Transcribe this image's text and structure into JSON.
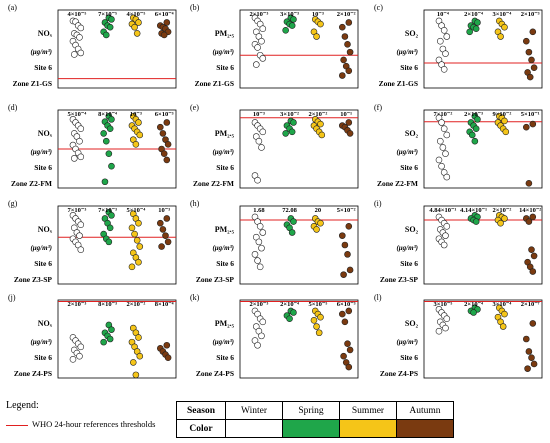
{
  "figure": {
    "legend_title": "Legend:",
    "threshold_label": "WHO 24-hour references thresholds",
    "season_table": {
      "season_header": "Season",
      "color_header": "Color",
      "seasons": [
        "Winter",
        "Spring",
        "Summer",
        "Autumn"
      ],
      "colors": [
        "#ffffff",
        "#1fa64a",
        "#f5c518",
        "#7a3a10"
      ]
    },
    "threshold_color": "#e02020"
  },
  "chart_data": [
    {
      "type": "scatter",
      "panel": "(a)",
      "pollutant": "NOₓ",
      "unit": "(μg/m³)",
      "site": "Site 6",
      "zone": "Zone Z1-GS",
      "p_values": [
        "4×10⁻⁵",
        "7×10⁻⁵",
        "4×10⁻⁵",
        "6×10⁻⁴"
      ],
      "threshold": 0.12,
      "series": [
        {
          "name": "Winter",
          "values": [
            0.86,
            0.85,
            0.8,
            0.77,
            0.7,
            0.68,
            0.65,
            0.6,
            0.55,
            0.5,
            0.45,
            0.43
          ]
        },
        {
          "name": "Spring",
          "values": [
            0.9,
            0.88,
            0.84,
            0.8,
            0.78,
            0.72,
            0.68
          ]
        },
        {
          "name": "Summer",
          "values": [
            0.9,
            0.88,
            0.84,
            0.82,
            0.78,
            0.7
          ]
        },
        {
          "name": "Autumn",
          "values": [
            0.84,
            0.8,
            0.78,
            0.76,
            0.72,
            0.7,
            0.68
          ]
        }
      ]
    },
    {
      "type": "scatter",
      "panel": "(b)",
      "pollutant": "PM₂.₅",
      "unit": "(μg/m³)",
      "site": "Site 6",
      "zone": "Zone Z1-GS",
      "p_values": [
        "2×10⁻³",
        "3×10⁻³",
        "10⁻³",
        "2×10⁻²"
      ],
      "threshold": 0.42,
      "series": [
        {
          "name": "Winter",
          "values": [
            0.9,
            0.86,
            0.82,
            0.76,
            0.72,
            0.66,
            0.6,
            0.56,
            0.52,
            0.42,
            0.38,
            0.3
          ]
        },
        {
          "name": "Spring",
          "values": [
            0.9,
            0.88,
            0.85,
            0.82,
            0.8,
            0.74
          ]
        },
        {
          "name": "Summer",
          "values": [
            0.88,
            0.85,
            0.82,
            0.72,
            0.66
          ]
        },
        {
          "name": "Autumn",
          "values": [
            0.84,
            0.78,
            0.66,
            0.56,
            0.46,
            0.36,
            0.28,
            0.22,
            0.16
          ]
        }
      ]
    },
    {
      "type": "scatter",
      "panel": "(c)",
      "pollutant": "SO₂",
      "unit": "(μg/m³)",
      "site": "Site 6",
      "zone": "Zone Z1-GS",
      "p_values": [
        "10⁻⁴",
        "2×10⁻⁴",
        "3×10⁻⁴",
        "2×10⁻³"
      ],
      "threshold": 0.32,
      "series": [
        {
          "name": "Winter",
          "values": [
            0.86,
            0.8,
            0.74,
            0.66,
            0.6,
            0.5,
            0.44,
            0.36,
            0.3,
            0.24
          ]
        },
        {
          "name": "Spring",
          "values": [
            0.86,
            0.84,
            0.8,
            0.78,
            0.76,
            0.72
          ]
        },
        {
          "name": "Summer",
          "values": [
            0.86,
            0.82,
            0.78,
            0.72,
            0.66
          ]
        },
        {
          "name": "Autumn",
          "values": [
            0.72,
            0.6,
            0.46,
            0.36,
            0.26,
            0.2,
            0.14
          ]
        }
      ]
    },
    {
      "type": "scatter",
      "panel": "(d)",
      "pollutant": "NOₓ",
      "unit": "(μg/m³)",
      "site": "Site 6",
      "zone": "Zone Z2-FM",
      "p_values": [
        "5×10⁻⁴",
        "8×10⁻⁴",
        "10⁻³",
        "6×10⁻³"
      ],
      "threshold": 0.5,
      "series": [
        {
          "name": "Winter",
          "values": [
            0.88,
            0.84,
            0.8,
            0.76,
            0.7,
            0.66,
            0.6,
            0.55,
            0.5,
            0.45,
            0.4,
            0.38
          ]
        },
        {
          "name": "Spring",
          "values": [
            0.92,
            0.88,
            0.85,
            0.8,
            0.76,
            0.7,
            0.6,
            0.44,
            0.28,
            0.08
          ]
        },
        {
          "name": "Summer",
          "values": [
            0.92,
            0.88,
            0.84,
            0.8,
            0.76,
            0.72,
            0.68,
            0.62,
            0.56
          ]
        },
        {
          "name": "Autumn",
          "values": [
            0.84,
            0.78,
            0.7,
            0.62,
            0.56,
            0.5,
            0.44,
            0.36
          ]
        }
      ]
    },
    {
      "type": "scatter",
      "panel": "(e)",
      "pollutant": "PM₂.₅",
      "unit": "(μg/m³)",
      "site": "Site 6",
      "zone": "Zone Z2-FM",
      "p_values": [
        "10⁻³",
        "3×10⁻²",
        "2×10⁻²",
        "10⁻¹"
      ],
      "threshold": 0.9,
      "series": [
        {
          "name": "Winter",
          "values": [
            0.84,
            0.8,
            0.76,
            0.72,
            0.66,
            0.6,
            0.52,
            0.16,
            0.1
          ]
        },
        {
          "name": "Spring",
          "values": [
            0.86,
            0.84,
            0.8,
            0.76,
            0.72,
            0.7
          ]
        },
        {
          "name": "Summer",
          "values": [
            0.88,
            0.85,
            0.82,
            0.8,
            0.76,
            0.72,
            0.68
          ]
        },
        {
          "name": "Autumn",
          "values": [
            0.84,
            0.8,
            0.78,
            0.74,
            0.7
          ]
        }
      ]
    },
    {
      "type": "scatter",
      "panel": "(f)",
      "pollutant": "SO₂",
      "unit": "(μg/m³)",
      "site": "Site 6",
      "zone": "Zone Z2-FM",
      "p_values": [
        "7×10⁻²",
        "2×10⁻³",
        "9×10⁻²",
        "5×10⁻¹"
      ],
      "threshold": 0.85,
      "series": [
        {
          "name": "Winter",
          "values": [
            0.9,
            0.84,
            0.76,
            0.68,
            0.6,
            0.52,
            0.44,
            0.36,
            0.28,
            0.2,
            0.14
          ]
        },
        {
          "name": "Spring",
          "values": [
            0.92,
            0.88,
            0.84,
            0.8,
            0.76,
            0.72,
            0.68,
            0.6
          ]
        },
        {
          "name": "Summer",
          "values": [
            0.92,
            0.9,
            0.86,
            0.84,
            0.8,
            0.76,
            0.72
          ]
        },
        {
          "name": "Autumn",
          "values": [
            0.82,
            0.78,
            0.06
          ]
        }
      ]
    },
    {
      "type": "scatter",
      "panel": "(g)",
      "pollutant": "NOₓ",
      "unit": "(μg/m³)",
      "site": "Site 6",
      "zone": "Zone Z3-SP",
      "p_values": [
        "7×10⁻³",
        "7×10⁻³",
        "5×10⁻⁴",
        "10⁻³"
      ],
      "threshold": 0.6,
      "series": [
        {
          "name": "Winter",
          "values": [
            0.88,
            0.84,
            0.8,
            0.76,
            0.72,
            0.66,
            0.62,
            0.58,
            0.54,
            0.5,
            0.44
          ]
        },
        {
          "name": "Spring",
          "values": [
            0.92,
            0.88,
            0.84,
            0.78,
            0.72,
            0.64,
            0.58,
            0.54
          ]
        },
        {
          "name": "Summer",
          "values": [
            0.9,
            0.84,
            0.78,
            0.72,
            0.64,
            0.56,
            0.48,
            0.4,
            0.34,
            0.28,
            0.22
          ]
        },
        {
          "name": "Autumn",
          "values": [
            0.84,
            0.78,
            0.7,
            0.62,
            0.54,
            0.48
          ]
        }
      ]
    },
    {
      "type": "scatter",
      "panel": "(h)",
      "pollutant": "PM₂.₅",
      "unit": "(μg/m³)",
      "site": "Site 6",
      "zone": "Zone Z3-SP",
      "p_values": [
        "1.68",
        "72.08",
        "20",
        "5×10⁻²"
      ],
      "threshold": 0.82,
      "series": [
        {
          "name": "Winter",
          "values": [
            0.86,
            0.8,
            0.74,
            0.66,
            0.6,
            0.54,
            0.46,
            0.38,
            0.3,
            0.22
          ]
        },
        {
          "name": "Spring",
          "values": [
            0.84,
            0.8,
            0.76,
            0.72,
            0.66
          ]
        },
        {
          "name": "Summer",
          "values": [
            0.84,
            0.8,
            0.78,
            0.74,
            0.7
          ]
        },
        {
          "name": "Autumn",
          "values": [
            0.74,
            0.62,
            0.5,
            0.38,
            0.18,
            0.12
          ]
        }
      ]
    },
    {
      "type": "scatter",
      "panel": "(i)",
      "pollutant": "SO₂",
      "unit": "(μg/m³)",
      "site": "Site 6",
      "zone": "Zone Z3-SP",
      "p_values": [
        "4.84×10⁻¹",
        "4.14×10⁻¹",
        "2×10⁻²",
        "14×10⁻²"
      ],
      "threshold": 0.82,
      "series": [
        {
          "name": "Winter",
          "values": [
            0.86,
            0.82,
            0.78,
            0.74,
            0.7,
            0.66,
            0.62,
            0.58,
            0.54,
            0.5
          ]
        },
        {
          "name": "Spring",
          "values": [
            0.88,
            0.86,
            0.84,
            0.82,
            0.8
          ]
        },
        {
          "name": "Summer",
          "values": [
            0.88,
            0.86,
            0.84,
            0.82,
            0.78
          ]
        },
        {
          "name": "Autumn",
          "values": [
            0.86,
            0.84,
            0.8,
            0.44,
            0.36,
            0.28,
            0.22,
            0.16
          ]
        }
      ]
    },
    {
      "type": "scatter",
      "panel": "(j)",
      "pollutant": "NOₓ",
      "unit": "(μg/m³)",
      "site": "Site 6",
      "zone": "Zone Z4-PS",
      "p_values": [
        "2×10⁻³",
        "8×10⁻³",
        "2×10⁻²",
        "8×10⁻⁴"
      ],
      "threshold": 0.98,
      "series": [
        {
          "name": "Winter",
          "values": [
            0.52,
            0.48,
            0.44,
            0.4,
            0.36,
            0.32,
            0.28,
            0.24
          ]
        },
        {
          "name": "Spring",
          "values": [
            0.68,
            0.62,
            0.58,
            0.54,
            0.5,
            0.46
          ]
        },
        {
          "name": "Summer",
          "values": [
            0.64,
            0.58,
            0.52,
            0.46,
            0.4,
            0.34,
            0.28,
            0.2,
            0.04
          ]
        },
        {
          "name": "Autumn",
          "values": [
            0.42,
            0.38,
            0.34,
            0.3,
            0.26
          ]
        }
      ]
    },
    {
      "type": "scatter",
      "panel": "(k)",
      "pollutant": "PM₂.₅",
      "unit": "(μg/m³)",
      "site": "Site 6",
      "zone": "Zone Z4-PS",
      "p_values": [
        "2×10⁻³",
        "2×10⁻⁴",
        "5×10⁻⁵",
        "6×10⁻³"
      ],
      "threshold": 0.98,
      "series": [
        {
          "name": "Winter",
          "values": [
            0.86,
            0.82,
            0.76,
            0.72,
            0.66,
            0.6,
            0.54,
            0.48,
            0.42
          ]
        },
        {
          "name": "Spring",
          "values": [
            0.86,
            0.84,
            0.8,
            0.76
          ]
        },
        {
          "name": "Summer",
          "values": [
            0.86,
            0.82,
            0.78,
            0.74,
            0.66,
            0.58
          ]
        },
        {
          "name": "Autumn",
          "values": [
            0.86,
            0.82,
            0.72,
            0.44,
            0.36,
            0.28,
            0.2,
            0.14
          ]
        }
      ]
    },
    {
      "type": "scatter",
      "panel": "(l)",
      "pollutant": "SO₂",
      "unit": "(μg/m³)",
      "site": "Site 6",
      "zone": "Zone Z4-PS",
      "p_values": [
        "3×10⁻⁵",
        "2×10⁻⁴",
        "3×10⁻⁴",
        "2×10⁻⁷"
      ],
      "threshold": 0.98,
      "series": [
        {
          "name": "Winter",
          "values": [
            0.88,
            0.84,
            0.8,
            0.76,
            0.72,
            0.68,
            0.64,
            0.6
          ]
        },
        {
          "name": "Spring",
          "values": [
            0.9,
            0.88,
            0.86,
            0.84
          ]
        },
        {
          "name": "Summer",
          "values": [
            0.9,
            0.86,
            0.82,
            0.78,
            0.72,
            0.66
          ]
        },
        {
          "name": "Autumn",
          "values": [
            0.7,
            0.5,
            0.34,
            0.26,
            0.18,
            0.12
          ]
        }
      ]
    }
  ]
}
